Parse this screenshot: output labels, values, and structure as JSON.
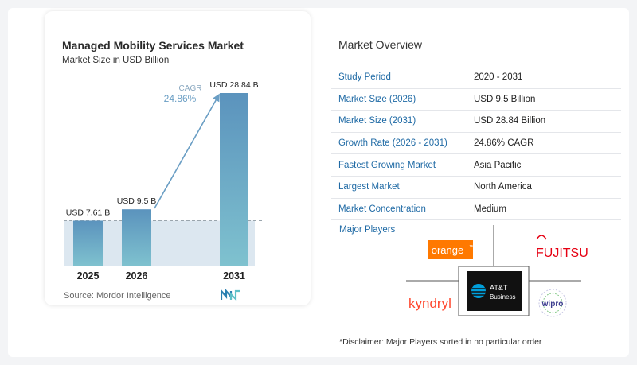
{
  "chart": {
    "title": "Managed Mobility Services Market",
    "subtitle": "Market Size in USD Billion",
    "cagr_label": "CAGR",
    "cagr_value": "24.86%",
    "source": "Source:  Mordor Intelligence"
  },
  "chart_data": {
    "type": "bar",
    "title": "Managed Mobility Services Market",
    "subtitle": "Market Size in USD Billion",
    "categories": [
      "2025",
      "2026",
      "2031"
    ],
    "values": [
      7.61,
      9.5,
      28.84
    ],
    "value_labels": [
      "USD 7.61 B",
      "USD 9.5 B",
      "USD 28.84 B"
    ],
    "unit": "USD Billion",
    "annotation": "CAGR 24.86%",
    "colors": {
      "bar_top": "#5b93bd",
      "bar_bottom": "#7fc2cf",
      "band": "#dce7f0",
      "arrow": "#6a9ec4",
      "baseline_dash": "#9aa5ad"
    }
  },
  "overview": {
    "title": "Market Overview",
    "rows": [
      {
        "label": "Study Period",
        "value": "2020 - 2031"
      },
      {
        "label": "Market Size (2026)",
        "value": "USD 9.5 Billion"
      },
      {
        "label": "Market Size (2031)",
        "value": "USD 28.84 Billion"
      },
      {
        "label": "Growth Rate (2026 - 2031)",
        "value": "24.86% CAGR"
      },
      {
        "label": "Fastest Growing Market",
        "value": "Asia Pacific"
      },
      {
        "label": "Largest Market",
        "value": "North America"
      },
      {
        "label": "Market Concentration",
        "value": "Medium"
      }
    ]
  },
  "players": {
    "title": "Major Players",
    "logos": [
      {
        "name": "orange",
        "text": "orange",
        "tm": "™",
        "color": "#ff7900"
      },
      {
        "name": "fujitsu",
        "text": "FUJITSU",
        "color": "#e60012"
      },
      {
        "name": "kyndryl",
        "text": "kyndryl",
        "color": "#ff462d"
      },
      {
        "name": "att",
        "text_1": "AT&T",
        "text_2": "Business",
        "color": "#009fdb"
      },
      {
        "name": "wipro",
        "text": "wipro",
        "color": "#3b3b8f"
      }
    ]
  },
  "disclaimer": "*Disclaimer: Major Players sorted in no particular order"
}
